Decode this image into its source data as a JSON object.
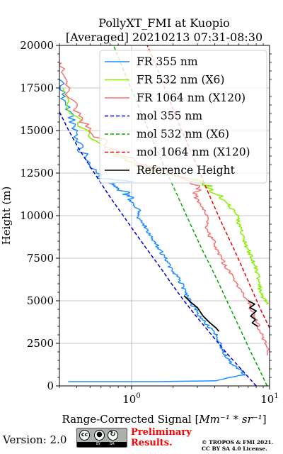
{
  "chart_data": {
    "type": "line",
    "title": "PollyXT_FMI at Kuopio",
    "subtitle": "[Averaged] 20210213 07:31-08:30",
    "xlabel_text": "Range-Corrected Signal [",
    "xlabel_math": "Mm⁻¹ * sr⁻¹",
    "xlabel_close": "]",
    "ylabel": "Height (m)",
    "xscale": "log",
    "xlim": [
      0.3,
      10
    ],
    "ylim": [
      0,
      20000
    ],
    "xticks": [
      {
        "value": 1,
        "base": "10",
        "exp": "0"
      },
      {
        "value": 10,
        "base": "10",
        "exp": "1"
      }
    ],
    "yticks": [
      0,
      2500,
      5000,
      7500,
      10000,
      12500,
      15000,
      17500,
      20000
    ],
    "grid": true,
    "legend_position": "upper-right",
    "series": [
      {
        "name": "FR 355 nm",
        "color": "#1f8fff",
        "style": "solid",
        "width": 1.5,
        "points": [
          [
            0.36,
            250
          ],
          [
            1.5,
            250
          ],
          [
            4.0,
            300
          ],
          [
            6.5,
            650
          ],
          [
            6.2,
            900
          ],
          [
            5.3,
            1300
          ],
          [
            4.9,
            1700
          ],
          [
            4.6,
            2100
          ],
          [
            4.4,
            2500
          ],
          [
            4.1,
            3000
          ],
          [
            3.6,
            3500
          ],
          [
            3.2,
            4000
          ],
          [
            2.9,
            4500
          ],
          [
            2.65,
            5000
          ],
          [
            2.45,
            5500
          ],
          [
            2.3,
            6000
          ],
          [
            2.1,
            6500
          ],
          [
            1.9,
            7000
          ],
          [
            1.75,
            7500
          ],
          [
            1.6,
            8000
          ],
          [
            1.45,
            8500
          ],
          [
            1.32,
            9000
          ],
          [
            1.22,
            9500
          ],
          [
            1.1,
            10000
          ],
          [
            1.15,
            10300
          ],
          [
            0.98,
            10800
          ],
          [
            0.95,
            11200
          ],
          [
            0.82,
            11600
          ],
          [
            0.7,
            11900
          ],
          [
            1.0,
            12000
          ],
          [
            0.6,
            12200
          ],
          [
            0.5,
            13000
          ],
          [
            0.42,
            14000
          ],
          [
            0.38,
            15000
          ],
          [
            0.35,
            16000
          ],
          [
            0.32,
            17000
          ],
          [
            0.3,
            18000
          ]
        ]
      },
      {
        "name": "FR 532 nm (X6)",
        "color": "#88ee00",
        "style": "solid",
        "width": 1.5,
        "points": [
          [
            9.7,
            4800
          ],
          [
            9.0,
            5200
          ],
          [
            8.5,
            5600
          ],
          [
            8.5,
            6000
          ],
          [
            8.2,
            6500
          ],
          [
            7.9,
            7000
          ],
          [
            7.4,
            7500
          ],
          [
            7.0,
            8000
          ],
          [
            6.6,
            8500
          ],
          [
            6.3,
            9000
          ],
          [
            6.0,
            9500
          ],
          [
            5.8,
            10000
          ],
          [
            5.2,
            10500
          ],
          [
            4.5,
            11000
          ],
          [
            3.8,
            11600
          ],
          [
            3.2,
            12000
          ],
          [
            2.6,
            12200
          ],
          [
            1.8,
            12400
          ],
          [
            1.2,
            12800
          ],
          [
            0.8,
            13500
          ],
          [
            0.5,
            14500
          ],
          [
            0.38,
            16000
          ],
          [
            0.32,
            17500
          ]
        ]
      },
      {
        "name": "FR 1064 nm (X120)",
        "color": "#f47272",
        "style": "solid",
        "width": 1.5,
        "points": [
          [
            10,
            1800
          ],
          [
            9.3,
            2500
          ],
          [
            8.5,
            3200
          ],
          [
            8.2,
            3800
          ],
          [
            7.4,
            4400
          ],
          [
            7.0,
            5000
          ],
          [
            6.1,
            5600
          ],
          [
            5.5,
            6300
          ],
          [
            4.8,
            7000
          ],
          [
            4.4,
            7600
          ],
          [
            4.1,
            8200
          ],
          [
            3.7,
            8800
          ],
          [
            3.5,
            9400
          ],
          [
            3.6,
            10000
          ],
          [
            3.2,
            10600
          ],
          [
            2.9,
            11200
          ],
          [
            3.0,
            11700
          ],
          [
            2.4,
            12200
          ],
          [
            1.9,
            12500
          ],
          [
            1.4,
            12800
          ],
          [
            1.0,
            13300
          ],
          [
            0.7,
            14000
          ],
          [
            0.5,
            15000
          ],
          [
            0.4,
            16000
          ],
          [
            0.34,
            17500
          ],
          [
            0.31,
            19000
          ]
        ]
      },
      {
        "name": "mol 355 nm",
        "color": "#0000cc",
        "style": "dashed",
        "width": 1.5,
        "points": [
          [
            8.0,
            0
          ],
          [
            6.2,
            1000
          ],
          [
            4.8,
            2000
          ],
          [
            3.8,
            3000
          ],
          [
            3.0,
            4000
          ],
          [
            2.4,
            5000
          ],
          [
            1.95,
            6000
          ],
          [
            1.6,
            7000
          ],
          [
            1.3,
            8000
          ],
          [
            1.06,
            9000
          ],
          [
            0.87,
            10000
          ],
          [
            0.71,
            11000
          ],
          [
            0.59,
            12000
          ],
          [
            0.49,
            13000
          ],
          [
            0.41,
            14000
          ],
          [
            0.35,
            15000
          ],
          [
            0.3,
            16100
          ]
        ]
      },
      {
        "name": "mol 532 nm (X6)",
        "color": "#00aa00",
        "style": "dashed",
        "width": 1.5,
        "points": [
          [
            9.6,
            0
          ],
          [
            8.4,
            1000
          ],
          [
            7.3,
            2000
          ],
          [
            6.4,
            3000
          ],
          [
            5.6,
            4000
          ],
          [
            4.9,
            5000
          ],
          [
            4.3,
            6000
          ],
          [
            3.75,
            7000
          ],
          [
            3.25,
            8000
          ],
          [
            2.85,
            9000
          ],
          [
            2.5,
            10000
          ],
          [
            2.2,
            11000
          ],
          [
            1.93,
            12000
          ],
          [
            1.7,
            13000
          ],
          [
            1.5,
            14000
          ],
          [
            1.33,
            15000
          ],
          [
            1.18,
            16000
          ],
          [
            1.05,
            17000
          ],
          [
            0.93,
            18000
          ],
          [
            0.83,
            19000
          ],
          [
            0.74,
            20000
          ]
        ]
      },
      {
        "name": "mol 1064 nm (X120)",
        "color": "#ee0000",
        "style": "dashed",
        "width": 1.5,
        "points": [
          [
            10,
            3400
          ],
          [
            8.6,
            4500
          ],
          [
            7.4,
            5700
          ],
          [
            6.3,
            7000
          ],
          [
            5.4,
            8200
          ],
          [
            4.6,
            9400
          ],
          [
            3.95,
            10600
          ],
          [
            3.4,
            11800
          ],
          [
            2.95,
            13000
          ],
          [
            2.55,
            14200
          ],
          [
            2.2,
            15400
          ],
          [
            1.92,
            16600
          ],
          [
            1.68,
            17800
          ],
          [
            1.47,
            19000
          ],
          [
            1.3,
            20000
          ]
        ]
      },
      {
        "name": "Reference Height",
        "color": "#000000",
        "style": "solid",
        "width": 1.8,
        "points": [
          [
            2.4,
            5300
          ],
          [
            2.7,
            4900
          ],
          [
            3.0,
            4600
          ],
          [
            3.3,
            4100
          ],
          [
            3.7,
            3700
          ],
          [
            4.1,
            3400
          ],
          [
            4.3,
            3200
          ],
          null,
          [
            7.0,
            5000
          ],
          [
            7.8,
            4800
          ],
          [
            7.2,
            4600
          ],
          [
            8.0,
            4400
          ],
          [
            7.3,
            4100
          ],
          [
            7.9,
            3900
          ],
          [
            7.5,
            3700
          ],
          [
            8.2,
            3500
          ]
        ]
      }
    ]
  },
  "footer": {
    "version": "Version: 2.0",
    "preliminary_line1": "Preliminary",
    "preliminary_line2": "Results.",
    "copyright_line1": "© TROPOS & FMI 2021.",
    "copyright_line2": "CC BY SA 4.0 License.",
    "cc_badge": {
      "cc": "cc",
      "by": "BY",
      "sa": "SA"
    }
  }
}
